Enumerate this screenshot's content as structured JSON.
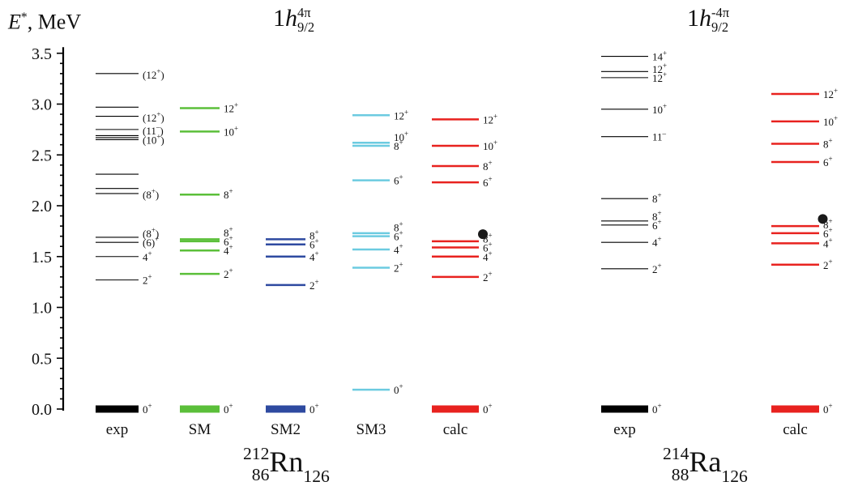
{
  "chart_data": {
    "type": "level-scheme",
    "ylabel_symbol": "E",
    "ylabel_sup": "*",
    "ylabel_unit": ", MeV",
    "ylim": [
      0,
      3.5
    ],
    "yticks": [
      "0.0",
      "0.5",
      "1.0",
      "1.5",
      "2.0",
      "2.5",
      "3.0",
      "3.5"
    ],
    "headers": [
      {
        "prefix": "1",
        "letter": "h",
        "sup": "4π",
        "sub": "9/2"
      },
      {
        "prefix": "1",
        "letter": "h",
        "sup": "-4π",
        "sub": "9/2"
      }
    ],
    "nuclei": [
      {
        "mass": "212",
        "symbol": "Rn",
        "z": "86",
        "n": "126"
      },
      {
        "mass": "214",
        "symbol": "Ra",
        "z": "88",
        "n": "126"
      }
    ],
    "columns": [
      {
        "name": "exp",
        "color": "#000000",
        "thin": true,
        "levels": [
          {
            "e": 0.0,
            "label": "0",
            "p": "+"
          },
          {
            "e": 1.27,
            "label": "2",
            "p": "+"
          },
          {
            "e": 1.5,
            "label": "4",
            "p": "+"
          },
          {
            "e": 1.64,
            "label": "(6)",
            "p": "+"
          },
          {
            "e": 1.69,
            "label": "(8",
            "p": "+",
            "tail": ")"
          },
          {
            "e": 2.12
          },
          {
            "e": 2.17
          },
          {
            "e": 2.31
          },
          {
            "e": 2.65
          },
          {
            "e": 2.67
          },
          {
            "e": 2.69
          },
          {
            "e": 2.75
          },
          {
            "e": 2.88
          },
          {
            "e": 2.97
          },
          {
            "e": 3.3
          }
        ],
        "labels": [
          {
            "e": 2.11,
            "label": "(8",
            "p": "+",
            "tail": ")"
          },
          {
            "e": 2.65,
            "label": "(10",
            "p": "+",
            "tail": ")"
          },
          {
            "e": 2.74,
            "label": "(11",
            "p": "–",
            "tail": ")"
          },
          {
            "e": 2.87,
            "label": "(12",
            "p": "+",
            "tail": ")"
          },
          {
            "e": 3.29,
            "label": "(12",
            "p": "+",
            "tail": ")"
          }
        ]
      },
      {
        "name": "SM",
        "color": "#5bbf3a",
        "levels": [
          {
            "e": 0.0,
            "label": "0",
            "p": "+"
          },
          {
            "e": 1.33,
            "label": "2",
            "p": "+"
          },
          {
            "e": 1.56,
            "label": "4",
            "p": "+"
          },
          {
            "e": 1.65,
            "label": "6",
            "p": "+"
          },
          {
            "e": 1.67,
            "label": "8",
            "p": "+"
          },
          {
            "e": 2.11,
            "label": "8",
            "p": "+"
          },
          {
            "e": 2.73,
            "label": "10",
            "p": "+"
          },
          {
            "e": 2.96,
            "label": "12",
            "p": "+"
          }
        ]
      },
      {
        "name": "SM2",
        "color": "#2e4aa0",
        "levels": [
          {
            "e": 0.0,
            "label": "0",
            "p": "+"
          },
          {
            "e": 1.22,
            "label": "2",
            "p": "+"
          },
          {
            "e": 1.5,
            "label": "4",
            "p": "+"
          },
          {
            "e": 1.62,
            "label": "6",
            "p": "+"
          },
          {
            "e": 1.67,
            "label": "8",
            "p": "+"
          }
        ]
      },
      {
        "name": "SM3",
        "color": "#6ccbe0",
        "levels": [
          {
            "e": 0.19,
            "label": "0",
            "p": "+"
          },
          {
            "e": 1.39,
            "label": "2",
            "p": "+"
          },
          {
            "e": 1.57,
            "label": "4",
            "p": "+"
          },
          {
            "e": 1.7,
            "label": "6",
            "p": "+"
          },
          {
            "e": 1.73,
            "label": "8",
            "p": "+"
          },
          {
            "e": 2.25,
            "label": "6",
            "p": "+"
          },
          {
            "e": 2.59,
            "label": "8",
            "p": "+"
          },
          {
            "e": 2.62,
            "label": "10",
            "p": "+"
          },
          {
            "e": 2.89,
            "label": "12",
            "p": "+"
          }
        ]
      },
      {
        "name": "calc",
        "color": "#e8221f",
        "dot": 1.72,
        "levels": [
          {
            "e": 0.0,
            "label": "0",
            "p": "+"
          },
          {
            "e": 1.3,
            "label": "2",
            "p": "+"
          },
          {
            "e": 1.5,
            "label": "4",
            "p": "+"
          },
          {
            "e": 1.59,
            "label": "6",
            "p": "+"
          },
          {
            "e": 1.65,
            "label": "8",
            "p": "+"
          },
          {
            "e": 2.23,
            "label": "6",
            "p": "+"
          },
          {
            "e": 2.39,
            "label": "8",
            "p": "+"
          },
          {
            "e": 2.59,
            "label": "10",
            "p": "+"
          },
          {
            "e": 2.85,
            "label": "12",
            "p": "+"
          }
        ]
      },
      {
        "name": "exp",
        "color": "#000000",
        "thin": true,
        "levels": [
          {
            "e": 0.0,
            "label": "0",
            "p": "+"
          },
          {
            "e": 1.38,
            "label": "2",
            "p": "+"
          },
          {
            "e": 1.64,
            "label": "4",
            "p": "+"
          },
          {
            "e": 1.81,
            "label": "6",
            "p": "+"
          },
          {
            "e": 1.85,
            "label": "8",
            "p": "+"
          },
          {
            "e": 2.07,
            "label": "8",
            "p": "+"
          },
          {
            "e": 2.68,
            "label": "11",
            "p": "–"
          },
          {
            "e": 2.95,
            "label": "10",
            "p": "+"
          },
          {
            "e": 3.26,
            "label": "12",
            "p": "+"
          },
          {
            "e": 3.32,
            "label": "12",
            "p": "+"
          },
          {
            "e": 3.47,
            "label": "14",
            "p": "+"
          }
        ]
      },
      {
        "name": "calc",
        "color": "#e8221f",
        "dot": 1.87,
        "levels": [
          {
            "e": 0.0,
            "label": "0",
            "p": "+"
          },
          {
            "e": 1.42,
            "label": "2",
            "p": "+"
          },
          {
            "e": 1.63,
            "label": "4",
            "p": "+"
          },
          {
            "e": 1.73,
            "label": "6",
            "p": "+"
          },
          {
            "e": 1.8,
            "label": "8",
            "p": "+"
          },
          {
            "e": 2.43,
            "label": "6",
            "p": "+"
          },
          {
            "e": 2.61,
            "label": "8",
            "p": "+"
          },
          {
            "e": 2.83,
            "label": "10",
            "p": "+"
          },
          {
            "e": 3.1,
            "label": "12",
            "p": "+"
          }
        ]
      }
    ]
  }
}
